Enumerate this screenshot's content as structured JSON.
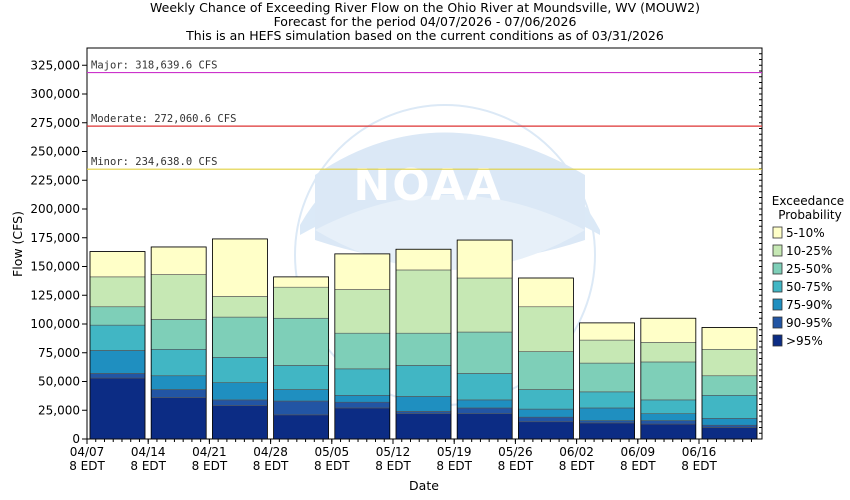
{
  "chart_data": {
    "type": "bar",
    "title_lines": [
      "Weekly Chance of Exceeding River Flow on the Ohio River at Moundsville, WV (MOUW2)",
      "Forecast for the period 04/07/2026 - 07/06/2026",
      "This is an HEFS simulation based on the current conditions as of 03/31/2026"
    ],
    "xlabel": "Date",
    "ylabel": "Flow (CFS)",
    "ylim": [
      0,
      340000
    ],
    "yticks": [
      "0",
      "25,000",
      "50,000",
      "75,000",
      "100,000",
      "125,000",
      "150,000",
      "175,000",
      "200,000",
      "225,000",
      "250,000",
      "275,000",
      "300,000",
      "325,000"
    ],
    "ytick_values": [
      0,
      25000,
      50000,
      75000,
      100000,
      125000,
      150000,
      175000,
      200000,
      225000,
      250000,
      275000,
      300000,
      325000
    ],
    "xticks": [
      {
        "date": "04/07",
        "sub": "8 EDT"
      },
      {
        "date": "04/14",
        "sub": "8 EDT"
      },
      {
        "date": "04/21",
        "sub": "8 EDT"
      },
      {
        "date": "04/28",
        "sub": "8 EDT"
      },
      {
        "date": "05/05",
        "sub": "8 EDT"
      },
      {
        "date": "05/12",
        "sub": "8 EDT"
      },
      {
        "date": "05/19",
        "sub": "8 EDT"
      },
      {
        "date": "05/26",
        "sub": "8 EDT"
      },
      {
        "date": "06/02",
        "sub": "8 EDT"
      },
      {
        "date": "06/09",
        "sub": "8 EDT"
      },
      {
        "date": "06/16",
        "sub": "8 EDT"
      }
    ],
    "thresholds": [
      {
        "label": "Major: 318,639.6 CFS",
        "value": 318639.6,
        "color": "#cc33cc"
      },
      {
        "label": "Moderate: 272,060.6 CFS",
        "value": 272060.6,
        "color": "#dd3333"
      },
      {
        "label": "Minor: 234,638.0 CFS",
        "value": 234638.0,
        "color": "#e0d040"
      }
    ],
    "legend_title": [
      "Exceedance",
      "Probability"
    ],
    "legend_position": "right",
    "series": [
      {
        "name": "5-10%",
        "color": "#ffffc8"
      },
      {
        "name": "10-25%",
        "color": "#c6e8b4"
      },
      {
        "name": "25-50%",
        "color": "#7ecfb8"
      },
      {
        "name": "50-75%",
        "color": "#41b6c4"
      },
      {
        "name": "75-90%",
        "color": "#1f8fc0"
      },
      {
        "name": "90-95%",
        "color": "#2255a4"
      },
      {
        "name": ">95%",
        "color": "#0c2c84"
      }
    ],
    "weeks": [
      {
        "top": 163000,
        "b": [
          53000,
          57000,
          77000,
          99000,
          115000,
          141000
        ]
      },
      {
        "top": 167000,
        "b": [
          36000,
          43000,
          55000,
          78000,
          104000,
          143000
        ]
      },
      {
        "top": 174000,
        "b": [
          29000,
          34000,
          49000,
          71000,
          106000,
          124000
        ]
      },
      {
        "top": 141000,
        "b": [
          21000,
          33000,
          43000,
          64000,
          105000,
          132000
        ]
      },
      {
        "top": 161000,
        "b": [
          27000,
          32000,
          38000,
          61000,
          92000,
          130000
        ]
      },
      {
        "top": 165000,
        "b": [
          22000,
          24000,
          37000,
          64000,
          92000,
          147000
        ]
      },
      {
        "top": 173000,
        "b": [
          22000,
          27000,
          34000,
          57000,
          93000,
          140000
        ]
      },
      {
        "top": 140000,
        "b": [
          15000,
          19000,
          26000,
          43000,
          76000,
          115000
        ]
      },
      {
        "top": 101000,
        "b": [
          14000,
          16000,
          27000,
          41000,
          66000,
          86000
        ]
      },
      {
        "top": 105000,
        "b": [
          13000,
          16000,
          22000,
          34000,
          67000,
          84000
        ]
      },
      {
        "top": 97000,
        "b": [
          10000,
          12000,
          18000,
          38000,
          55000,
          78000
        ]
      }
    ]
  }
}
